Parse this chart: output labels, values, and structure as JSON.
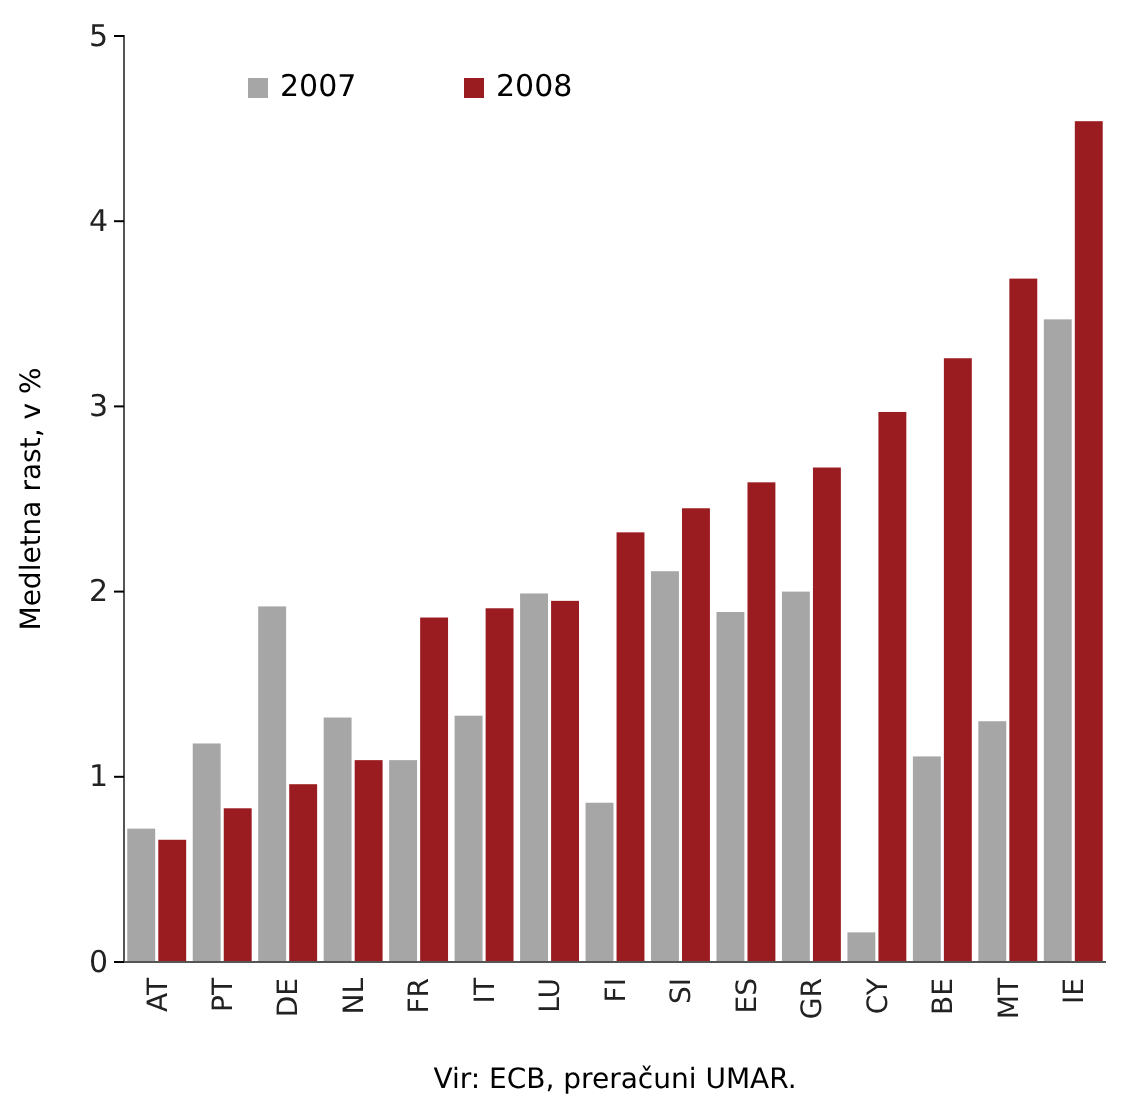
{
  "chart_data": {
    "type": "bar",
    "ylabel": "Medletna rast, v %",
    "categories": [
      "AT",
      "PT",
      "DE",
      "NL",
      "FR",
      "IT",
      "LU",
      "FI",
      "SI",
      "ES",
      "GR",
      "CY",
      "BE",
      "MT",
      "IE"
    ],
    "series": [
      {
        "name": "2007",
        "color": "#a6a6a6",
        "values": [
          0.72,
          1.18,
          1.92,
          1.32,
          1.09,
          1.33,
          1.99,
          0.86,
          2.11,
          1.89,
          2.0,
          0.16,
          1.11,
          1.3,
          3.47
        ]
      },
      {
        "name": "2008",
        "color": "#9b1c20",
        "values": [
          0.66,
          0.83,
          0.96,
          1.09,
          1.86,
          1.91,
          1.95,
          2.32,
          2.45,
          2.59,
          2.67,
          2.97,
          3.26,
          3.69,
          4.54
        ]
      }
    ],
    "ylim": [
      0,
      5
    ],
    "yticks": [
      0,
      1,
      2,
      3,
      4,
      5
    ],
    "grid": false,
    "legend": "top left",
    "annotations": [
      "Vir: ECB, preračuni UMAR."
    ]
  }
}
